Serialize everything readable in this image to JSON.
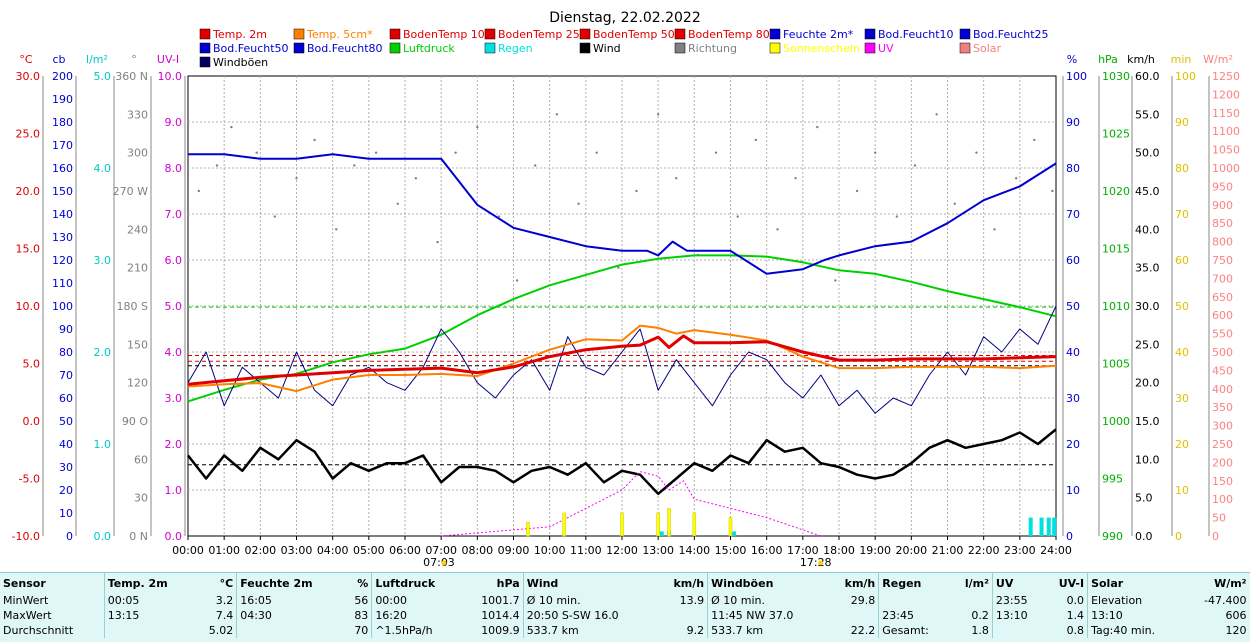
{
  "chart_data": {
    "type": "line",
    "title": "Dienstag, 22.02.2022",
    "x_ticks": [
      "00:00",
      "01:00",
      "02:00",
      "03:00",
      "04:00",
      "05:00",
      "06:00",
      "07:00",
      "08:00",
      "09:00",
      "10:00",
      "11:00",
      "12:00",
      "13:00",
      "14:00",
      "15:00",
      "16:00",
      "17:00",
      "18:00",
      "19:00",
      "20:00",
      "21:00",
      "22:00",
      "23:00",
      "24:00"
    ],
    "sunrise": "07:03",
    "sunset": "17:28",
    "grid": true,
    "legend": [
      {
        "name": "Temp. 2m",
        "color": "#e00000"
      },
      {
        "name": "Temp. 5cm*",
        "color": "#ff8000"
      },
      {
        "name": "BodenTemp 10",
        "color": "#e00000"
      },
      {
        "name": "BodenTemp 25",
        "color": "#e00000"
      },
      {
        "name": "BodenTemp 50",
        "color": "#e00000"
      },
      {
        "name": "BodenTemp 80",
        "color": "#e00000"
      },
      {
        "name": "Feuchte 2m*",
        "color": "#0000d0"
      },
      {
        "name": "Bod.Feucht10",
        "color": "#0000d0"
      },
      {
        "name": "Bod.Feucht25",
        "color": "#0000d0"
      },
      {
        "name": "Bod.Feucht50",
        "color": "#0000d0"
      },
      {
        "name": "Bod.Feucht80",
        "color": "#0000d0"
      },
      {
        "name": "Luftdruck",
        "color": "#00d000"
      },
      {
        "name": "Regen",
        "color": "#00e0e0"
      },
      {
        "name": "Wind",
        "color": "#000000"
      },
      {
        "name": "Richtung",
        "color": "#808080"
      },
      {
        "name": "Sonnenschein",
        "color": "#ffff00"
      },
      {
        "name": "UV",
        "color": "#ff00ff"
      },
      {
        "name": "Solar",
        "color": "#f08080"
      },
      {
        "name": "Windböen",
        "color": "#000060"
      }
    ],
    "axes": [
      {
        "side": "left",
        "label": "°C",
        "color": "#e00000",
        "ticks": [
          "30.0",
          "25.0",
          "20.0",
          "15.0",
          "10.0",
          "5.0",
          "0.0",
          "-5.0",
          "-10.0"
        ]
      },
      {
        "side": "left",
        "label": "cb",
        "color": "#0000d0",
        "ticks": [
          "200",
          "190",
          "180",
          "170",
          "160",
          "150",
          "140",
          "130",
          "120",
          "110",
          "100",
          "90",
          "80",
          "70",
          "60",
          "50",
          "40",
          "30",
          "20",
          "10",
          "0"
        ]
      },
      {
        "side": "left",
        "label": "l/m²",
        "color": "#00c8c8",
        "ticks": [
          "5.0",
          "4.0",
          "3.0",
          "2.0",
          "1.0",
          "0.0"
        ]
      },
      {
        "side": "left",
        "label": "°",
        "color": "#808080",
        "ticks": [
          "360 N",
          "330",
          "300",
          "270 W",
          "240",
          "210",
          "180 S",
          "150",
          "120",
          "90 O",
          "60",
          "30",
          "0 N"
        ]
      },
      {
        "side": "left",
        "label": "UV-I",
        "color": "#d000d0",
        "ticks": [
          "10.0",
          "9.0",
          "8.0",
          "7.0",
          "6.0",
          "5.0",
          "4.0",
          "3.0",
          "2.0",
          "1.0",
          "0.0"
        ]
      },
      {
        "side": "right",
        "label": "%",
        "color": "#0000d0",
        "ticks": [
          "100",
          "90",
          "80",
          "70",
          "60",
          "50",
          "40",
          "30",
          "20",
          "10",
          "0"
        ]
      },
      {
        "side": "right",
        "label": "hPa",
        "color": "#00b000",
        "ticks": [
          "1030",
          "1025",
          "1020",
          "1015",
          "1010",
          "1005",
          "1000",
          "995",
          "990"
        ]
      },
      {
        "side": "right",
        "label": "km/h",
        "color": "#000000",
        "ticks": [
          "60.0",
          "55.0",
          "50.0",
          "45.0",
          "40.0",
          "35.0",
          "30.0",
          "25.0",
          "20.0",
          "15.0",
          "10.0",
          "5.0",
          "0.0"
        ]
      },
      {
        "side": "right",
        "label": "min",
        "color": "#e0c000",
        "ticks": [
          "100",
          "90",
          "80",
          "70",
          "60",
          "50",
          "40",
          "30",
          "20",
          "10",
          "0"
        ]
      },
      {
        "side": "right",
        "label": "W/m²",
        "color": "#ff8080",
        "ticks": [
          "1250",
          "1200",
          "1150",
          "1100",
          "1050",
          "1000",
          "950",
          "900",
          "850",
          "800",
          "750",
          "700",
          "650",
          "600",
          "550",
          "500",
          "450",
          "400",
          "350",
          "300",
          "250",
          "200",
          "150",
          "100",
          "50",
          "0"
        ]
      }
    ],
    "series": [
      {
        "name": "Temp. 2m",
        "unit": "°C",
        "x": [
          0,
          1,
          2,
          3,
          4,
          5,
          6,
          7,
          8,
          9,
          10,
          11,
          12,
          12.5,
          13,
          13.3,
          13.7,
          14,
          15,
          16,
          17,
          18,
          19,
          20,
          21,
          22,
          23,
          24
        ],
        "y": [
          3.2,
          3.5,
          3.8,
          4.0,
          4.2,
          4.4,
          4.5,
          4.6,
          4.2,
          4.7,
          5.6,
          6.2,
          6.5,
          6.6,
          7.3,
          6.4,
          7.4,
          6.8,
          6.8,
          6.9,
          6.0,
          5.3,
          5.3,
          5.4,
          5.4,
          5.4,
          5.5,
          5.6
        ]
      },
      {
        "name": "Temp. 5cm*",
        "unit": "°C",
        "x": [
          0,
          1,
          2,
          3,
          4,
          5,
          6,
          7,
          8,
          9,
          10,
          11,
          12,
          12.5,
          13,
          13.5,
          14,
          15,
          16,
          17,
          18,
          19,
          20,
          21,
          22,
          23,
          24
        ],
        "y": [
          3.0,
          3.2,
          3.3,
          2.6,
          3.6,
          4.0,
          4.0,
          4.1,
          3.9,
          5.0,
          6.2,
          7.1,
          7.0,
          8.3,
          8.1,
          7.6,
          7.9,
          7.5,
          7.0,
          5.6,
          4.6,
          4.6,
          4.7,
          4.7,
          4.7,
          4.6,
          4.8
        ]
      },
      {
        "name": "Feuchte 2m*",
        "unit": "%",
        "x": [
          0,
          1,
          2,
          3,
          4,
          5,
          6,
          7,
          8,
          9,
          10,
          11,
          12,
          12.7,
          13,
          13.4,
          13.8,
          14.3,
          15,
          16,
          17,
          17.6,
          18,
          19,
          20,
          21,
          22,
          23,
          24
        ],
        "y": [
          83,
          83,
          82,
          82,
          83,
          82,
          82,
          82,
          72,
          67,
          65,
          63,
          62,
          62,
          61,
          64,
          62,
          62,
          62,
          57,
          58,
          60,
          61,
          63,
          64,
          68,
          73,
          76,
          81
        ]
      },
      {
        "name": "Luftdruck",
        "unit": "hPa",
        "x": [
          0,
          1,
          2,
          3,
          4,
          5,
          6,
          7,
          8,
          9,
          10,
          11,
          12,
          13,
          14,
          15,
          16,
          17,
          18,
          19,
          20,
          21,
          22,
          23,
          24
        ],
        "y": [
          1001.7,
          1002.7,
          1003.6,
          1004.1,
          1005.1,
          1005.8,
          1006.3,
          1007.5,
          1009.2,
          1010.6,
          1011.8,
          1012.7,
          1013.6,
          1014.1,
          1014.4,
          1014.4,
          1014.3,
          1013.8,
          1013.1,
          1012.8,
          1012.1,
          1011.3,
          1010.6,
          1009.9,
          1009.1
        ]
      },
      {
        "name": "Wind",
        "unit": "km/h",
        "x": [
          0,
          0.5,
          1,
          1.5,
          2,
          2.5,
          3,
          3.5,
          4,
          4.5,
          5,
          5.5,
          6,
          6.5,
          7,
          7.5,
          8,
          8.5,
          9,
          9.5,
          10,
          10.5,
          11,
          11.5,
          12,
          12.5,
          13,
          13.5,
          14,
          14.5,
          15,
          15.5,
          16,
          16.5,
          17,
          17.5,
          18,
          18.5,
          19,
          19.5,
          20,
          20.5,
          21,
          21.5,
          22,
          22.5,
          23,
          23.5,
          24
        ],
        "y": [
          10.5,
          7.5,
          10.5,
          8.5,
          11.5,
          10.0,
          12.5,
          11.0,
          7.5,
          9.5,
          8.5,
          9.5,
          9.5,
          10.5,
          7.0,
          9.0,
          9.0,
          8.5,
          7.0,
          8.5,
          9.0,
          8.0,
          9.5,
          7.0,
          8.5,
          8.0,
          5.5,
          7.5,
          9.5,
          8.5,
          10.5,
          9.5,
          12.5,
          11.0,
          11.5,
          9.5,
          9.0,
          8.0,
          7.5,
          8.0,
          9.5,
          11.5,
          12.5,
          11.5,
          12.0,
          12.5,
          13.5,
          12.0,
          13.9
        ]
      },
      {
        "name": "Windböen",
        "unit": "km/h",
        "x": [
          0,
          0.5,
          1,
          1.5,
          2,
          2.5,
          3,
          3.5,
          4,
          4.5,
          5,
          5.5,
          6,
          6.5,
          7,
          7.5,
          8,
          8.5,
          9,
          9.5,
          10,
          10.5,
          11,
          11.5,
          12,
          12.5,
          13,
          13.5,
          14,
          14.5,
          15,
          15.5,
          16,
          16.5,
          17,
          17.5,
          18,
          18.5,
          19,
          19.5,
          20,
          20.5,
          21,
          21.5,
          22,
          22.5,
          23,
          23.5,
          24
        ],
        "y": [
          20,
          24,
          17,
          22,
          20,
          18,
          24,
          19,
          17,
          21,
          22,
          20,
          19,
          22,
          27,
          24,
          20,
          18,
          21,
          23,
          19,
          26,
          22,
          21,
          24,
          27,
          19,
          23,
          20,
          17,
          21,
          24,
          23,
          20,
          18,
          21,
          17,
          19,
          16,
          18,
          17,
          21,
          24,
          21,
          26,
          24,
          27,
          25,
          30
        ]
      },
      {
        "name": "UV",
        "unit": "UV-I",
        "x": [
          7,
          10,
          12,
          12.5,
          13,
          13.3,
          13.7,
          14,
          15,
          16,
          17.5
        ],
        "y": [
          0,
          0.2,
          1.0,
          1.4,
          1.3,
          1.0,
          1.2,
          0.8,
          0.6,
          0.4,
          0
        ]
      },
      {
        "name": "Regen",
        "unit": "l/m²",
        "x": [
          13.1,
          13.3,
          15.1,
          23.3,
          23.6,
          23.8,
          23.95
        ],
        "y": [
          0.05,
          0.05,
          0.05,
          0.2,
          0.2,
          0.2,
          0.2
        ]
      },
      {
        "name": "Sonnenschein",
        "unit": "min",
        "x": [
          9.4,
          10.4,
          12.0,
          13.0,
          13.3,
          14.0,
          15.0
        ],
        "y": [
          3,
          5,
          5,
          5,
          6,
          5,
          4
        ]
      },
      {
        "name": "Richtung",
        "unit": "°",
        "x": [
          0.3,
          0.8,
          1.2,
          1.9,
          2.4,
          3.0,
          3.5,
          4.1,
          4.6,
          5.2,
          5.8,
          6.3,
          6.9,
          7.4,
          8.0,
          8.6,
          9.1,
          9.6,
          10.2,
          10.8,
          11.3,
          11.9,
          12.4,
          13.0,
          13.5,
          14.1,
          14.6,
          15.2,
          15.7,
          16.3,
          16.8,
          17.4,
          17.9,
          18.5,
          19.0,
          19.6,
          20.1,
          20.7,
          21.2,
          21.8,
          22.3,
          22.9,
          23.4,
          23.9
        ],
        "y": [
          270,
          290,
          320,
          300,
          250,
          280,
          310,
          240,
          290,
          300,
          260,
          280,
          230,
          300,
          320,
          250,
          200,
          290,
          330,
          260,
          300,
          210,
          270,
          330,
          280,
          220,
          300,
          250,
          310,
          240,
          280,
          320,
          200,
          270,
          300,
          250,
          290,
          330,
          260,
          300,
          240,
          280,
          310,
          270
        ]
      }
    ],
    "hlines": [
      {
        "y": 5.7,
        "unit": "°C",
        "color": "#e00000",
        "style": "dash"
      },
      {
        "y": 5.2,
        "unit": "°C",
        "color": "#e00000",
        "style": "dash"
      },
      {
        "y": 9.3,
        "unit": "km/h",
        "color": "#000000",
        "style": "dash"
      },
      {
        "y": 22.2,
        "unit": "km/h",
        "color": "#000000",
        "style": "dash"
      },
      {
        "y": 1009.9,
        "unit": "hPa",
        "color": "#00d000",
        "style": "dash"
      }
    ]
  },
  "stats": {
    "headers": [
      "Sensor",
      "Temp. 2m",
      "°C",
      "Feuchte 2m",
      "%",
      "Luftdruck",
      "hPa",
      "Wind",
      "km/h",
      "Windböen",
      "km/h",
      "Regen",
      "l/m²",
      "UV",
      "UV-I",
      "Solar",
      "W/m²"
    ],
    "rows": [
      [
        "MinWert",
        "00:05",
        "3.2",
        "16:05",
        "56",
        "00:00",
        "1001.7",
        "Ø 10 min.",
        "13.9",
        "Ø 10 min.",
        "29.8",
        "",
        "",
        "23:55",
        "0.0",
        "Elevation",
        "-47.400"
      ],
      [
        "MaxWert",
        "13:15",
        "7.4",
        "04:30",
        "83",
        "16:20",
        "1014.4",
        "20:50   S-SW 16.0",
        "",
        "11:45   NW 37.0",
        "",
        "23:45",
        "0.2",
        "13:10",
        "1.4",
        "13:10",
        "606"
      ],
      [
        "Durchschnitt",
        "",
        "5.02",
        "",
        "70",
        "^1.5hPa/h",
        "1009.9",
        "533.7 km",
        "9.2",
        "533.7 km",
        "22.2",
        "Gesamt:",
        "1.8",
        "",
        "0.8",
        "Tag:40 min.",
        "120"
      ]
    ]
  }
}
